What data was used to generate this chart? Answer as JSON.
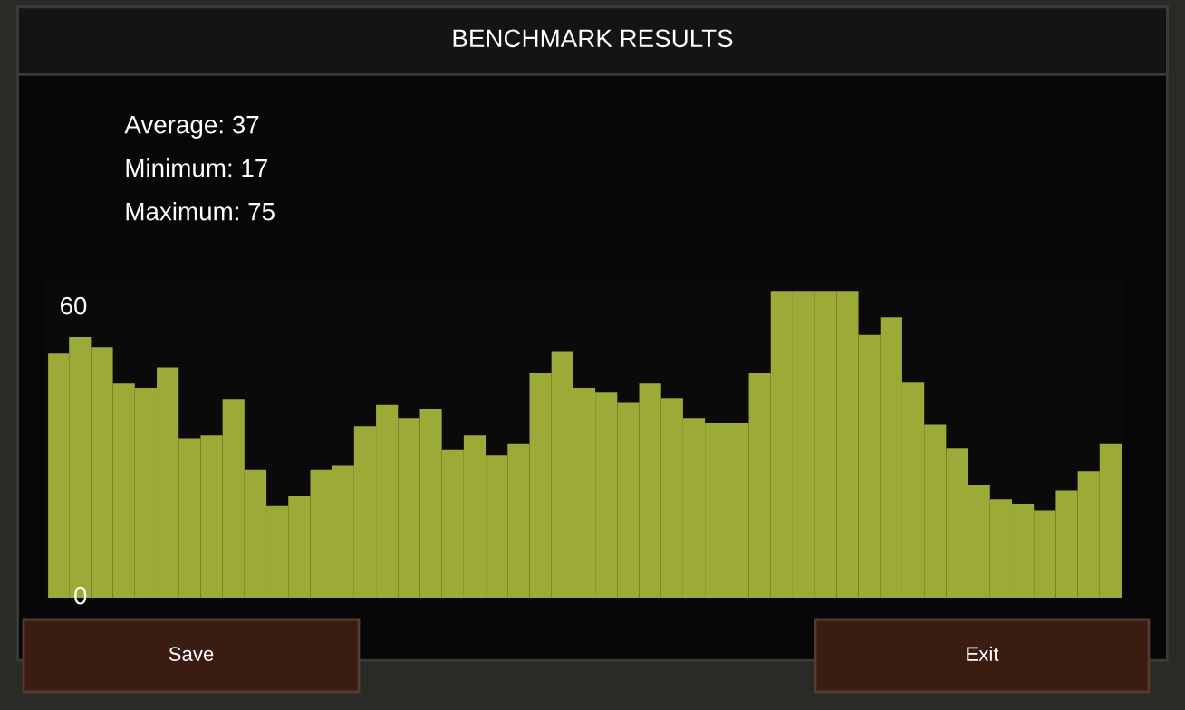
{
  "chart_data": {
    "type": "bar",
    "title": "BENCHMARK RESULTS",
    "categories": [
      null,
      null,
      null,
      null,
      null,
      null,
      null,
      null,
      null,
      null,
      null,
      null,
      null,
      null,
      null,
      null,
      null,
      null,
      null,
      null,
      null,
      null,
      null,
      null,
      null,
      null,
      null,
      null,
      null,
      null,
      null,
      null,
      null,
      null,
      null,
      null,
      null,
      null,
      null,
      null,
      null,
      null,
      null,
      null,
      null,
      null,
      null,
      null,
      null
    ],
    "values": [
      50.6,
      54,
      51.9,
      44.4,
      43.5,
      47.7,
      32.9,
      33.7,
      41,
      26.5,
      19,
      21,
      26.5,
      27.3,
      35.6,
      40,
      37.1,
      39,
      30.6,
      33.7,
      29.6,
      31.9,
      46.5,
      50.9,
      43.5,
      42.5,
      40.4,
      44.4,
      41.2,
      37.1,
      36.2,
      36.2,
      46.5,
      63.5,
      63.5,
      63.5,
      63.5,
      54.4,
      58.1,
      44.6,
      35.9,
      30.9,
      23.4,
      20.4,
      19.4,
      18.1,
      22.2,
      26.2,
      31.9
    ],
    "color": "#9cab38",
    "ylim": [
      0,
      66
    ],
    "yticks": [
      0,
      60
    ],
    "tick_labels": "y",
    "grid": false,
    "annotations": [
      "Average: 37",
      "Minimum: 17",
      "Maximum: 75",
      "Save",
      "Exit"
    ]
  }
}
